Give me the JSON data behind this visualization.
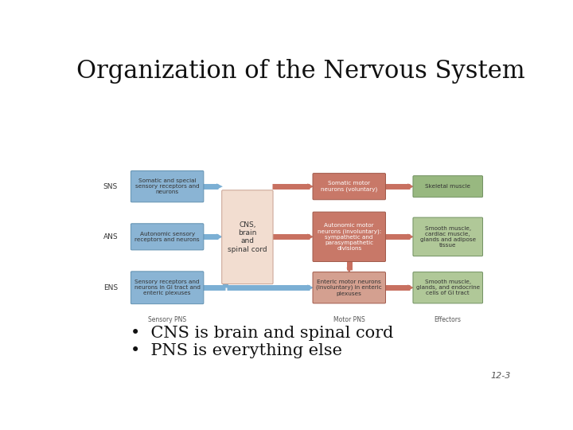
{
  "title": "Organization of the Nervous System",
  "title_fontsize": 22,
  "title_font": "serif",
  "background_color": "#ffffff",
  "bullet1": "CNS is brain and spinal cord",
  "bullet2": "PNS is everything else",
  "bullet_fontsize": 15,
  "footnote": "12-3",
  "row_labels": [
    "SNS",
    "ANS",
    "ENS"
  ],
  "col_labels": [
    "Sensory PNS",
    "Motor PNS",
    "Effectors"
  ],
  "cns_label": "CNS,\nbrain\nand\nspinal cord",
  "sensory_boxes": [
    {
      "text": "Somatic and special\nsensory receptors and\nneurons"
    },
    {
      "text": "Autonomic sensory\nreceptors and neurons"
    },
    {
      "text": "Sensory receptors and\nneurons in GI tract and\nenteric plexuses"
    }
  ],
  "motor_boxes": [
    {
      "text": "Somatic motor\nneurons (voluntary)"
    },
    {
      "text": "Autonomic motor\nneurons (involuntary):\nsympathetic and\nparasympathetic\ndivisions"
    },
    {
      "text": "Enteric motor neurons\n(involuntary) in enteric\nplexuses"
    }
  ],
  "effector_boxes": [
    {
      "text": "Skeletal muscle"
    },
    {
      "text": "Smooth muscle,\ncardiac muscle,\nglands and adipose\ntissue"
    },
    {
      "text": "Smooth muscle,\nglands, and endocrine\ncells of GI tract"
    }
  ],
  "sensory_color": "#8ab4d4",
  "sensory_edge": "#6090b0",
  "cns_color": "#f2ddd0",
  "cns_edge": "#c8a090",
  "motor_color_sns": "#c87868",
  "motor_color_ans": "#c87868",
  "motor_color_ens": "#d4a090",
  "motor_edge": "#a05848",
  "effector_color_sns": "#98b880",
  "effector_color_ans": "#b0c898",
  "effector_color_ens": "#b0c898",
  "effector_edge": "#709060",
  "blue_arrow": "#7bafd4",
  "red_arrow": "#c87060",
  "text_dark": "#333333",
  "text_white": "#ffffff",
  "text_light": "#555555"
}
